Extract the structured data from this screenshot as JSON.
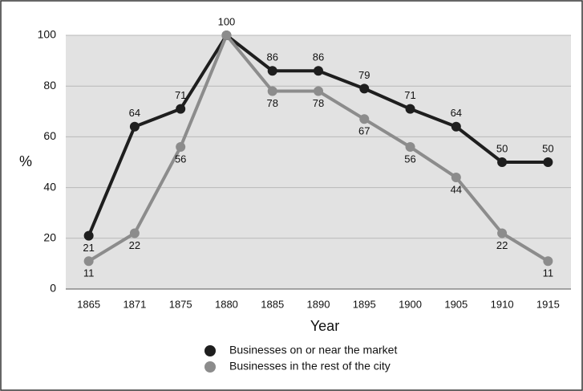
{
  "chart_data": {
    "type": "line",
    "x_label": "Year",
    "y_label": "%",
    "categories": [
      "1865",
      "1871",
      "1875",
      "1880",
      "1885",
      "1890",
      "1895",
      "1900",
      "1905",
      "1910",
      "1915"
    ],
    "series": [
      {
        "name": "Businesses on or near the market",
        "color": "#1e1e1e",
        "values": [
          21,
          64,
          71,
          100,
          86,
          86,
          79,
          71,
          64,
          50,
          50
        ]
      },
      {
        "name": "Businesses in the rest of the city",
        "color": "#8c8c8c",
        "values": [
          11,
          22,
          56,
          100,
          78,
          78,
          67,
          56,
          44,
          22,
          11
        ],
        "value_labels": [
          "11",
          "22",
          "56",
          null,
          "78",
          "78",
          "67",
          "56",
          "44",
          "22",
          "11"
        ]
      }
    ],
    "ylim": [
      0,
      100
    ],
    "yticks": [
      0,
      20,
      40,
      60,
      80,
      100
    ],
    "grid": true
  }
}
